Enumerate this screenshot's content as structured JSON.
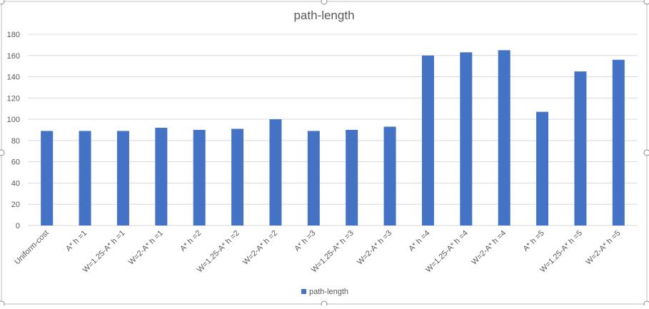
{
  "chart_data": {
    "type": "bar",
    "title": "path-length",
    "xlabel": "",
    "ylabel": "",
    "ylim": [
      0,
      180
    ],
    "yticks": [
      0,
      20,
      40,
      60,
      80,
      100,
      120,
      140,
      160,
      180
    ],
    "grid": true,
    "legend_position": "bottom",
    "categories": [
      "Uniform-cost",
      "A* h =1",
      "W=1.25-A* h =1",
      "W=2-A* h =1",
      "A* h =2",
      "W=1.25-A* h =2",
      "W=2-A* h =2",
      "A* h =3",
      "W=1.25-A* h =3",
      "W=2-A* h =3",
      "A* h =4",
      "W=1.25-A* h =4",
      "W=2-A* h =4",
      "A* h =5",
      "W=1.25-A* h =5",
      "W=2-A* h =5"
    ],
    "series": [
      {
        "name": "path-length",
        "color": "#4472C4",
        "values": [
          89,
          89,
          89,
          92,
          90,
          91,
          100,
          89,
          90,
          93,
          160,
          163,
          165,
          107,
          145,
          156
        ]
      }
    ]
  },
  "colors": {
    "bar": "#4472C4",
    "gridline": "#D9D9D9",
    "text": "#595959",
    "title": "#595959",
    "frame": "#BFBFBF"
  }
}
